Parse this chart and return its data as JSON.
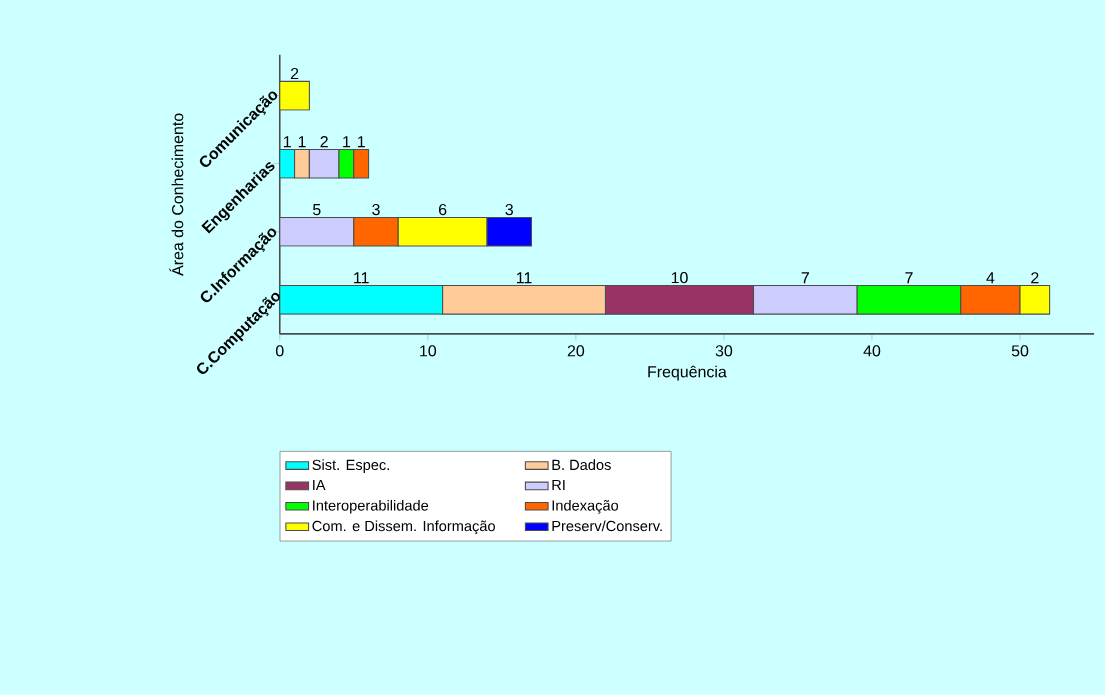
{
  "chart_data": {
    "type": "bar",
    "orientation": "horizontal",
    "stacked": true,
    "xlabel": "Frequência",
    "ylabel": "Área do Conhecimento",
    "categories": [
      "Comunicação",
      "Engenharias",
      "C.Informação",
      "C.Computação"
    ],
    "series": [
      {
        "name": "Sist. Espec.",
        "color": "#00ffff",
        "values": [
          null,
          1,
          null,
          11
        ]
      },
      {
        "name": "B. Dados",
        "color": "#ffcc99",
        "values": [
          null,
          1,
          null,
          11
        ]
      },
      {
        "name": "IA",
        "color": "#993366",
        "values": [
          null,
          null,
          null,
          10
        ]
      },
      {
        "name": "RI",
        "color": "#ccccff",
        "values": [
          null,
          2,
          5,
          7
        ]
      },
      {
        "name": "Interoperabilidade",
        "color": "#00ff00",
        "values": [
          null,
          1,
          null,
          7
        ]
      },
      {
        "name": "Indexação",
        "color": "#ff6600",
        "values": [
          null,
          1,
          3,
          4
        ]
      },
      {
        "name": "Com. e Dissem. Informação",
        "color": "#ffff00",
        "values": [
          2,
          null,
          6,
          2
        ]
      },
      {
        "name": "Preserv/Conserv.",
        "color": "#0000ff",
        "values": [
          null,
          null,
          3,
          null
        ]
      }
    ],
    "xlim": [
      0,
      55
    ],
    "xticks": [
      0,
      10,
      20,
      30,
      40,
      50
    ],
    "data_labels": true,
    "legend": "bottom",
    "grid": false
  }
}
